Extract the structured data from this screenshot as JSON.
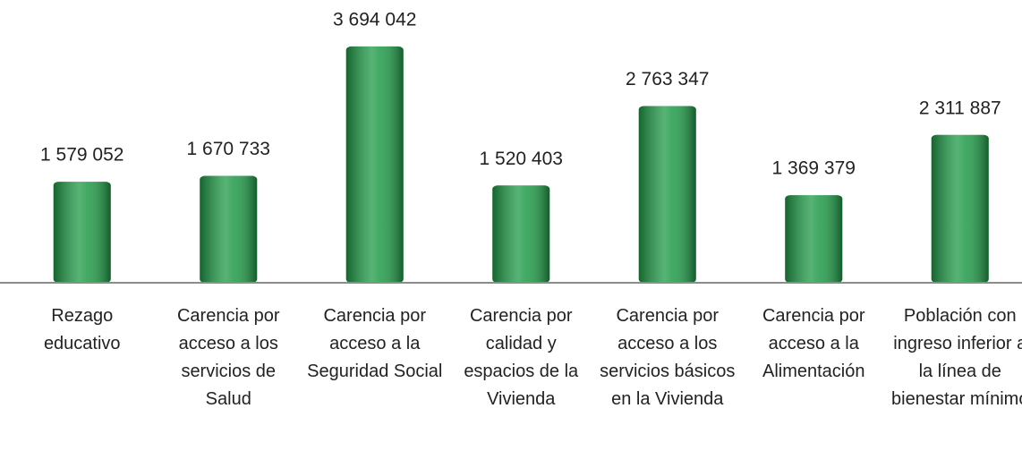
{
  "chart_data": {
    "type": "bar",
    "categories": [
      "Rezago educativo",
      "Carencia por acceso a los servicios de Salud",
      "Carencia por acceso a la Seguridad Social",
      "Carencia por calidad y espacios de la Vivienda",
      "Carencia por acceso a los servicios básicos en la Vivienda",
      "Carencia por acceso a la Alimentación",
      "Población con ingreso inferior a la línea de bienestar mínimo"
    ],
    "values": [
      1579052,
      1670733,
      3694042,
      1520403,
      2763347,
      1369379,
      2311887
    ],
    "value_labels": [
      "1 579 052",
      "1 670 733",
      "3 694 042",
      "1 520 403",
      "2 763 347",
      "1 369 379",
      "2 311 887"
    ],
    "color": "#1f9a47",
    "ylim": [
      0,
      4420000
    ]
  }
}
